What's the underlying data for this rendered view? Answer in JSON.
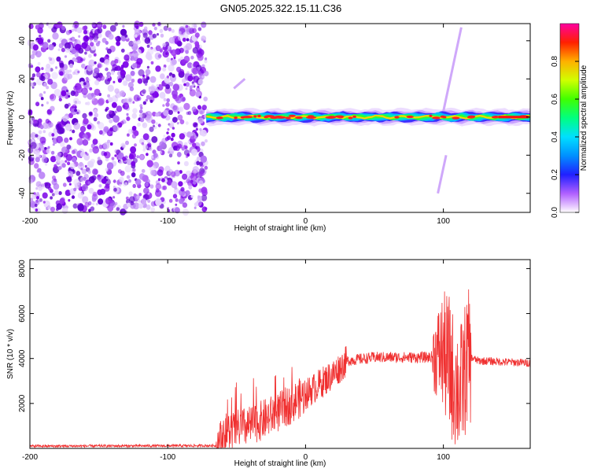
{
  "title": "GN05.2025.322.15.11.C36",
  "chart_data": [
    {
      "type": "heatmap",
      "name": "spectrogram",
      "xlabel": "Height of straight line (km)",
      "ylabel": "Frequency (Hz)",
      "xlim": [
        -200,
        163
      ],
      "ylim": [
        -50,
        49
      ],
      "xticks": [
        -200,
        -100,
        0,
        100
      ],
      "yticks": [
        -40,
        -20,
        0,
        20,
        40
      ],
      "noise_region_x": [
        -200,
        -72
      ],
      "signal_band": {
        "x_start": -72,
        "x_end": 163,
        "center_freq": 0,
        "half_width_hz": 3
      },
      "colorbar": {
        "label": "Normalized spectral amplitude",
        "range": [
          0.0,
          1.0
        ],
        "ticks": [
          "0.0",
          "0.2",
          "0.4",
          "0.6",
          "0.8"
        ]
      }
    },
    {
      "type": "line",
      "name": "snr",
      "xlabel": "Height of straight line (km)",
      "ylabel": "SNR (10 * v/v)",
      "xlim": [
        -200,
        163
      ],
      "ylim": [
        0,
        8400
      ],
      "xticks": [
        -200,
        -100,
        0,
        100
      ],
      "yticks": [
        2000,
        4000,
        6000,
        8000
      ],
      "color": "#f03030",
      "series_envelope": [
        {
          "x": -200,
          "y": 100
        },
        {
          "x": -65,
          "y": 120
        },
        {
          "x": -58,
          "y": 700
        },
        {
          "x": -40,
          "y": 1000
        },
        {
          "x": -20,
          "y": 1600
        },
        {
          "x": 0,
          "y": 2400
        },
        {
          "x": 20,
          "y": 3300
        },
        {
          "x": 30,
          "y": 3900
        },
        {
          "x": 50,
          "y": 4050
        },
        {
          "x": 90,
          "y": 4050
        },
        {
          "x": 100,
          "y": 4300
        },
        {
          "x": 108,
          "y": 3000
        },
        {
          "x": 112,
          "y": 2500
        },
        {
          "x": 118,
          "y": 4100
        },
        {
          "x": 125,
          "y": 3900
        },
        {
          "x": 163,
          "y": 3800
        }
      ]
    }
  ]
}
